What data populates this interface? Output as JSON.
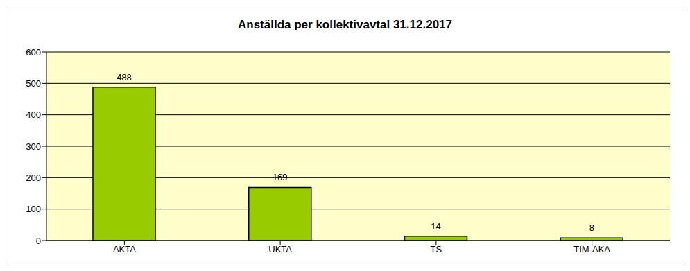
{
  "chart_data": {
    "type": "bar",
    "title": "Anställda per kollektivavtal 31.12.2017",
    "categories": [
      "AKTA",
      "UKTA",
      "TS",
      "TIM-AKA"
    ],
    "values": [
      488,
      169,
      14,
      8
    ],
    "color": "#99cc00",
    "ylim": [
      0,
      600
    ],
    "yticks": [
      0,
      100,
      200,
      300,
      400,
      500,
      600
    ],
    "grid": true,
    "data_labels": true
  }
}
